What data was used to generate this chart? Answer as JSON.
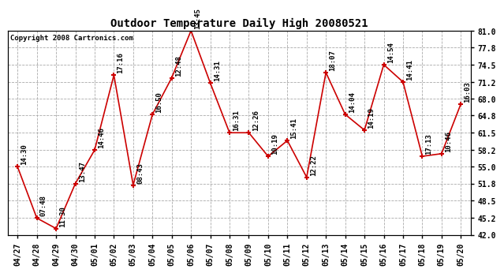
{
  "title": "Outdoor Temperature Daily High 20080521",
  "copyright": "Copyright 2008 Cartronics.com",
  "dates": [
    "04/27",
    "04/28",
    "04/29",
    "04/30",
    "05/01",
    "05/02",
    "05/03",
    "05/04",
    "05/05",
    "05/06",
    "05/07",
    "05/08",
    "05/09",
    "05/10",
    "05/11",
    "05/12",
    "05/13",
    "05/14",
    "05/15",
    "05/16",
    "05/17",
    "05/18",
    "05/19",
    "05/20"
  ],
  "values": [
    55.0,
    45.2,
    43.2,
    51.8,
    58.2,
    72.5,
    51.5,
    65.0,
    72.0,
    81.0,
    71.0,
    61.5,
    61.5,
    57.0,
    60.0,
    53.0,
    73.0,
    65.0,
    62.0,
    74.5,
    71.2,
    57.0,
    57.5,
    67.0
  ],
  "time_labels": [
    "14:30",
    "07:48",
    "11:30",
    "13:47",
    "14:46",
    "17:16",
    "08:43",
    "16:50",
    "12:48",
    "13:45",
    "14:31",
    "16:31",
    "12:26",
    "10:19",
    "15:41",
    "12:22",
    "18:07",
    "14:04",
    "14:19",
    "14:54",
    "14:41",
    "17:13",
    "10:46",
    "16:03"
  ],
  "ylim": [
    42.0,
    81.0
  ],
  "yticks": [
    42.0,
    45.2,
    48.5,
    51.8,
    55.0,
    58.2,
    61.5,
    64.8,
    68.0,
    71.2,
    74.5,
    77.8,
    81.0
  ],
  "line_color": "#cc0000",
  "marker_color": "#cc0000",
  "bg_color": "#ffffff",
  "grid_color": "#aaaaaa",
  "title_fontsize": 10,
  "label_fontsize": 6.5,
  "tick_fontsize": 7,
  "copyright_fontsize": 6.5
}
